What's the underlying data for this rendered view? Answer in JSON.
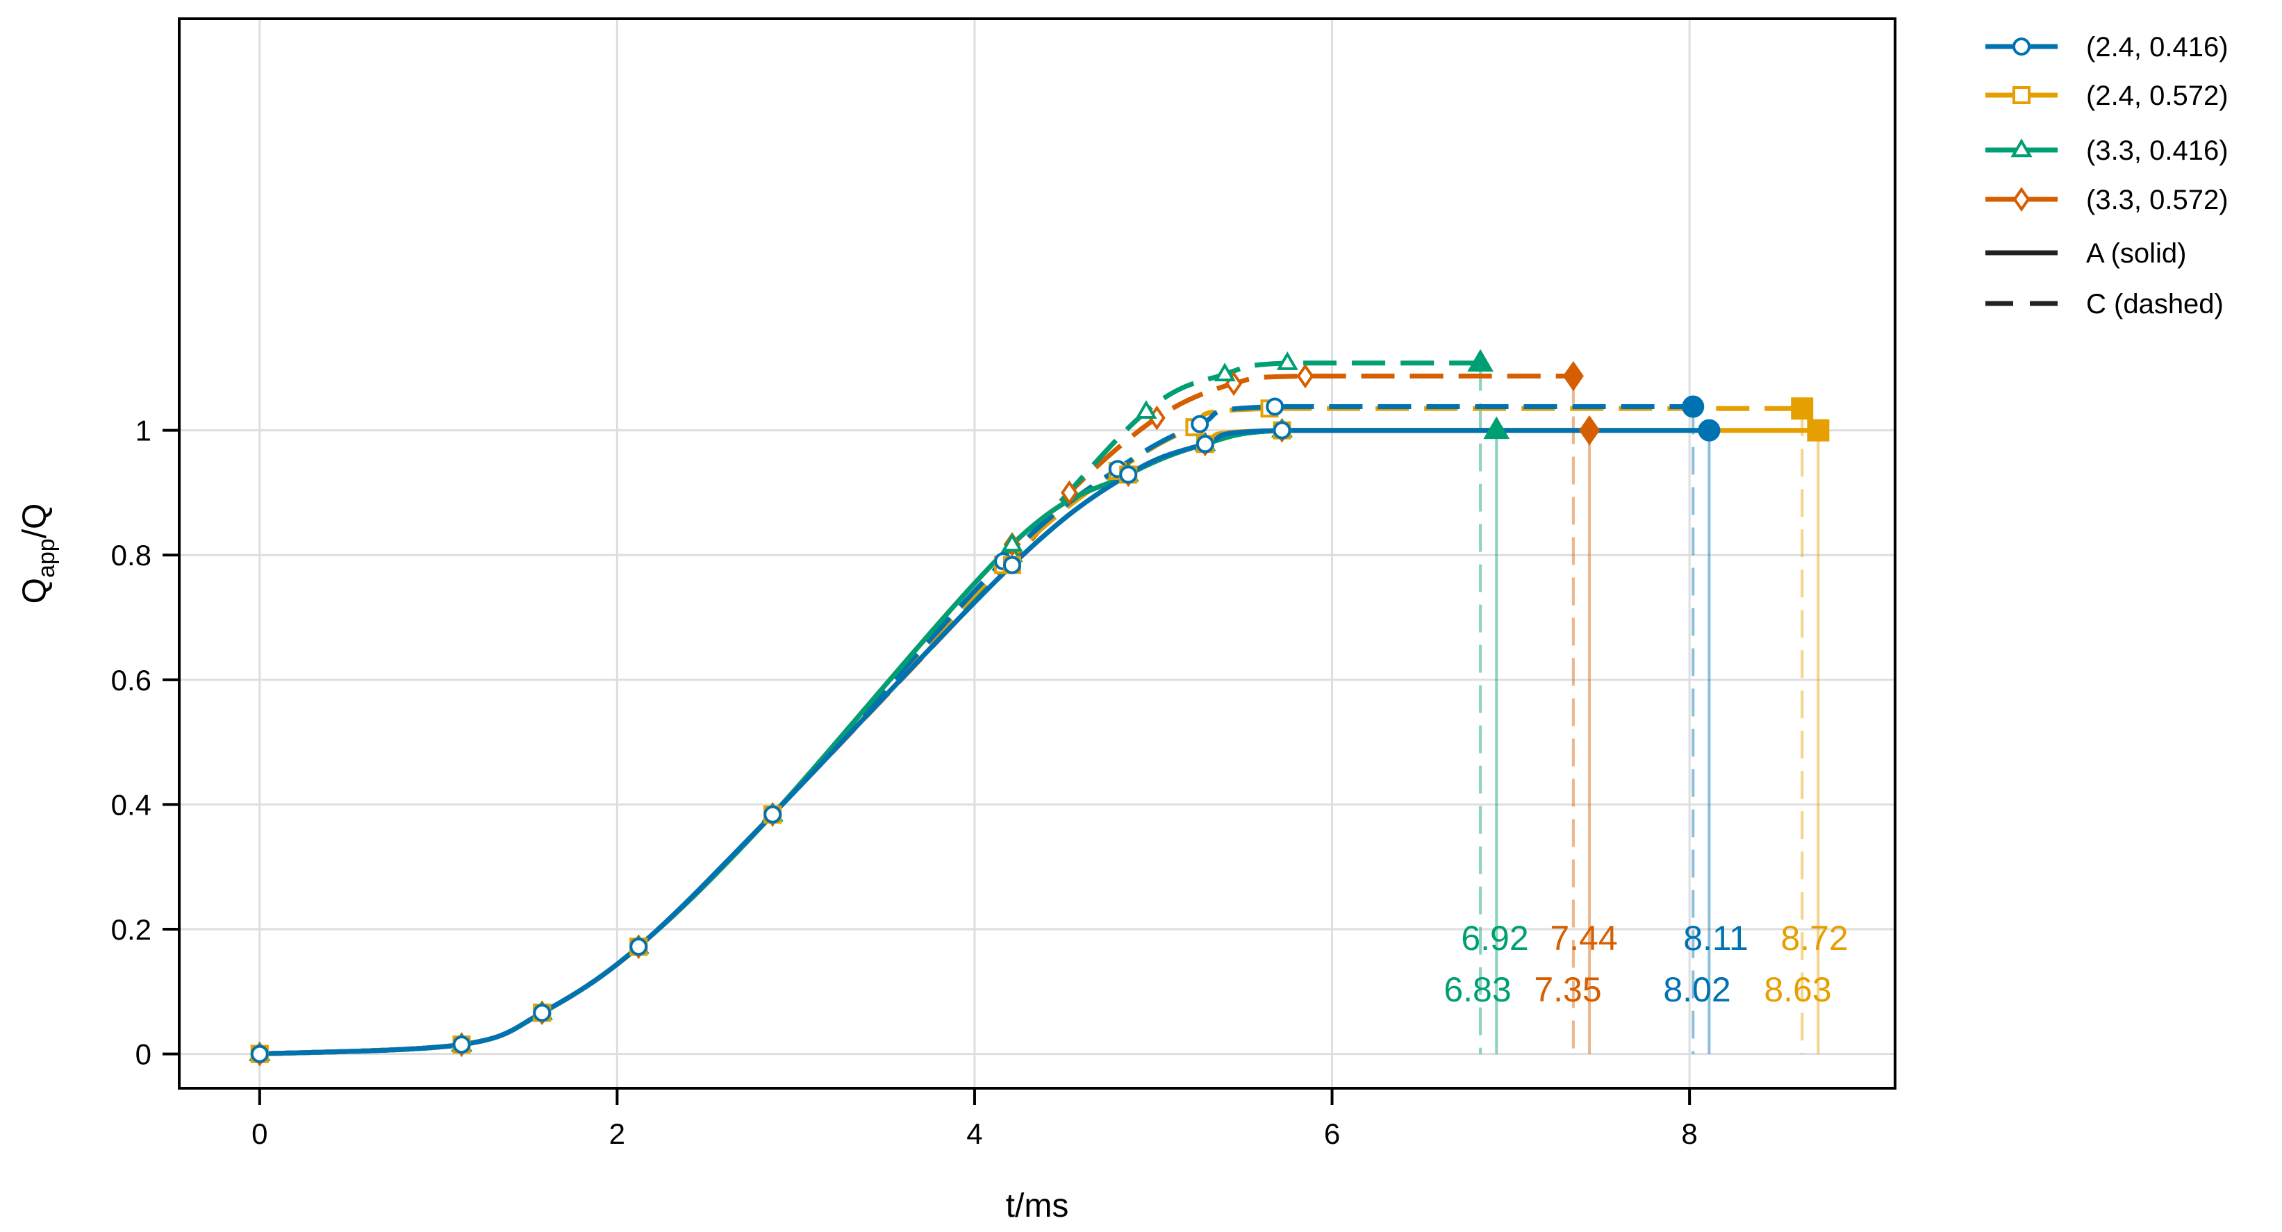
{
  "chart_data": {
    "type": "line",
    "title": "",
    "xlabel": "t/ms",
    "ylabel_main": "Q",
    "ylabel_sub": "app",
    "ylabel_tail": "/Q",
    "xlim": [
      -0.45,
      9.15
    ],
    "ylim": [
      -0.055,
      1.66
    ],
    "xticks": [
      0,
      2,
      4,
      6,
      8
    ],
    "xtick_labels": [
      "0",
      "2",
      "4",
      "6",
      "8"
    ],
    "yticks": [
      0,
      0.2,
      0.4,
      0.6,
      0.8,
      1
    ],
    "ytick_labels": [
      "0",
      "0.2",
      "0.4",
      "0.6",
      "0.8",
      "1"
    ],
    "grid": true,
    "legend_position": "outside top-right",
    "line_styles": [
      {
        "label": "A (solid)",
        "dash": "solid"
      },
      {
        "label": "C (dashed)",
        "dash": "dashed"
      }
    ],
    "series": [
      {
        "name": "(2.4, 0.416)",
        "color": "#0072b2",
        "marker": "circle",
        "end_A": 8.11,
        "end_C": 8.02,
        "plateau_A": 1.0,
        "plateau_C": 1.038,
        "A": {
          "x": [
            0,
            1.13,
            1.58,
            2.12,
            2.87,
            4.21,
            4.86,
            5.29,
            5.72,
            8.11
          ],
          "y": [
            0,
            0.015,
            0.066,
            0.172,
            0.384,
            0.784,
            0.929,
            0.978,
            1.0,
            1.0
          ]
        },
        "C": {
          "x": [
            0,
            1.13,
            1.58,
            2.12,
            2.87,
            4.16,
            4.8,
            5.26,
            5.68,
            8.02
          ],
          "y": [
            0,
            0.015,
            0.066,
            0.172,
            0.384,
            0.79,
            0.938,
            1.01,
            1.038,
            1.038
          ]
        }
      },
      {
        "name": "(2.4, 0.572)",
        "color": "#e69f00",
        "marker": "square",
        "end_A": 8.72,
        "end_C": 8.63,
        "plateau_A": 1.0,
        "plateau_C": 1.035,
        "A": {
          "x": [
            0,
            1.13,
            1.58,
            2.12,
            2.87,
            4.21,
            4.86,
            5.29,
            5.72,
            8.72
          ],
          "y": [
            0,
            0.015,
            0.066,
            0.172,
            0.384,
            0.784,
            0.929,
            0.978,
            1.0,
            1.0
          ]
        },
        "C": {
          "x": [
            0,
            1.13,
            1.58,
            2.12,
            2.87,
            4.16,
            4.8,
            5.23,
            5.65,
            8.63
          ],
          "y": [
            0,
            0.015,
            0.066,
            0.172,
            0.384,
            0.784,
            0.935,
            1.005,
            1.035,
            1.035
          ]
        }
      },
      {
        "name": "(3.3, 0.416)",
        "color": "#009e73",
        "marker": "triangle",
        "end_A": 6.92,
        "end_C": 6.83,
        "plateau_A": 1.0,
        "plateau_C": 1.108,
        "A": {
          "x": [
            0,
            1.13,
            1.58,
            2.12,
            2.87,
            4.21,
            4.86,
            5.29,
            5.72,
            6.92
          ],
          "y": [
            0,
            0.015,
            0.066,
            0.172,
            0.384,
            0.817,
            0.929,
            0.978,
            1.0,
            1.0
          ]
        },
        "C": {
          "x": [
            0,
            1.13,
            1.58,
            2.12,
            2.87,
            4.21,
            4.96,
            5.4,
            5.75,
            6.83
          ],
          "y": [
            0,
            0.015,
            0.066,
            0.172,
            0.384,
            0.8,
            1.03,
            1.09,
            1.108,
            1.108
          ]
        }
      },
      {
        "name": "(3.3, 0.572)",
        "color": "#d55e00",
        "marker": "diamond",
        "end_A": 7.44,
        "end_C": 7.35,
        "plateau_A": 1.0,
        "plateau_C": 1.087,
        "A": {
          "x": [
            0,
            1.13,
            1.58,
            2.12,
            2.87,
            4.21,
            4.86,
            5.29,
            5.72,
            7.44
          ],
          "y": [
            0,
            0.015,
            0.066,
            0.172,
            0.384,
            0.817,
            0.929,
            0.978,
            1.0,
            1.0
          ]
        },
        "C": {
          "x": [
            0,
            1.13,
            1.58,
            2.12,
            2.87,
            4.21,
            4.53,
            5.02,
            5.45,
            5.85,
            7.35
          ],
          "y": [
            0,
            0.015,
            0.066,
            0.172,
            0.384,
            0.79,
            0.9,
            1.02,
            1.075,
            1.087,
            1.087
          ]
        }
      }
    ],
    "annotations": {
      "top": [
        {
          "text": "6.92",
          "x": 6.92,
          "color": "#009e73"
        },
        {
          "text": "7.44",
          "x": 7.44,
          "color": "#d55e00"
        },
        {
          "text": "8.11",
          "x": 8.11,
          "color": "#0072b2"
        },
        {
          "text": "8.72",
          "x": 8.72,
          "color": "#e69f00"
        }
      ],
      "bottom": [
        {
          "text": "6.83",
          "x": 6.83,
          "color": "#009e73"
        },
        {
          "text": "7.35",
          "x": 7.35,
          "color": "#d55e00"
        },
        {
          "text": "8.02",
          "x": 8.02,
          "color": "#0072b2"
        },
        {
          "text": "8.63",
          "x": 8.63,
          "color": "#e69f00"
        }
      ]
    }
  }
}
